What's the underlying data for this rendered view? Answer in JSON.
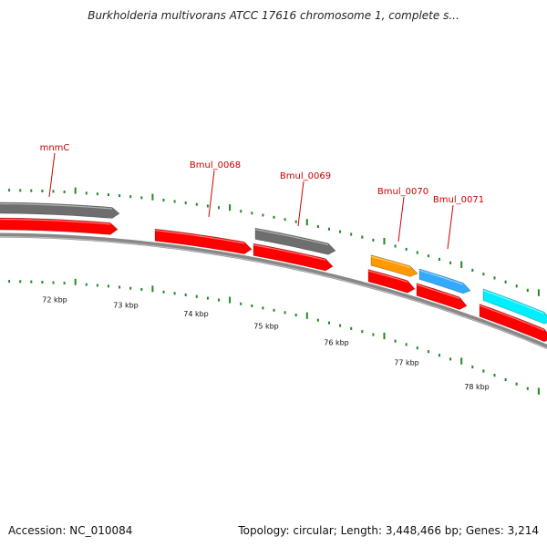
{
  "title": "Burkholderia multivorans ATCC 17616 chromosome 1, complete s...",
  "footer": {
    "accession": "Accession: NC_010084",
    "summary": "Topology: circular; Length: 3,448,466 bp; Genes: 3,214"
  },
  "colors": {
    "cds": "#ff0000",
    "other_gene": "#6e6e6e",
    "orange_gene": "#ff9900",
    "blue_gene": "#33aaff",
    "cyan_gene": "#00eeff",
    "tick": "#1f8a1f",
    "backbone": "#888888",
    "label": "#cc0000"
  },
  "kbp_labels": [
    "72 kbp",
    "73 kbp",
    "74 kbp",
    "75 kbp",
    "76 kbp",
    "77 kbp",
    "78 kbp"
  ],
  "gene_labels": [
    "mnmC",
    "Bmul_0068",
    "Bmul_0069",
    "Bmul_0070",
    "Bmul_0071"
  ],
  "genes": [
    {
      "name": "mnmC-top",
      "color": "other_gene"
    },
    {
      "name": "mnmC-bottom",
      "color": "cds"
    },
    {
      "name": "Bmul_0068",
      "color": "cds"
    },
    {
      "name": "Bmul_0069-top",
      "color": "other_gene"
    },
    {
      "name": "Bmul_0069-bottom",
      "color": "cds"
    },
    {
      "name": "Bmul_0070-top",
      "color": "orange_gene"
    },
    {
      "name": "Bmul_0070-bottom",
      "color": "cds"
    },
    {
      "name": "Bmul_0071-top",
      "color": "blue_gene"
    },
    {
      "name": "Bmul_0071-bottom",
      "color": "cds"
    },
    {
      "name": "next-gene-top",
      "color": "cyan_gene"
    },
    {
      "name": "next-gene-bottom",
      "color": "cds"
    }
  ]
}
